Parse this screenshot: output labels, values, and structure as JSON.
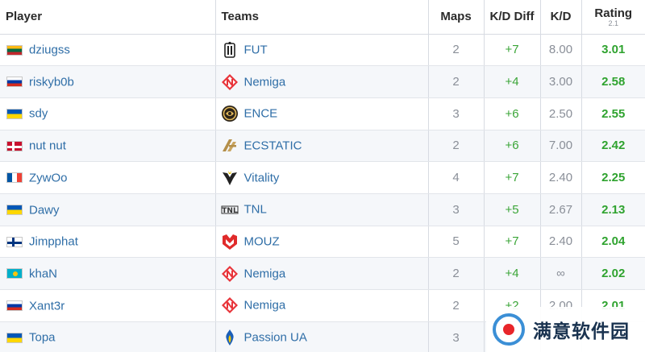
{
  "header": {
    "player": "Player",
    "teams": "Teams",
    "maps": "Maps",
    "kd_diff": "K/D Diff",
    "kd": "K/D",
    "rating": "Rating",
    "rating_version": "2.1"
  },
  "rows": [
    {
      "flag": "lt",
      "player": "dziugss",
      "team": "FUT",
      "team_logo": "fut-logo-icon",
      "maps": "2",
      "kd_diff": "+7",
      "kd": "8.00",
      "rating": "3.01"
    },
    {
      "flag": "ru",
      "player": "riskyb0b",
      "team": "Nemiga",
      "team_logo": "nemiga-logo-icon",
      "maps": "2",
      "kd_diff": "+4",
      "kd": "3.00",
      "rating": "2.58"
    },
    {
      "flag": "ua",
      "player": "sdy",
      "team": "ENCE",
      "team_logo": "ence-logo-icon",
      "maps": "3",
      "kd_diff": "+6",
      "kd": "2.50",
      "rating": "2.55"
    },
    {
      "flag": "dk",
      "player": "nut nut",
      "team": "ECSTATIC",
      "team_logo": "ecstatic-logo-icon",
      "maps": "2",
      "kd_diff": "+6",
      "kd": "7.00",
      "rating": "2.42"
    },
    {
      "flag": "fr",
      "player": "ZywOo",
      "team": "Vitality",
      "team_logo": "vitality-logo-icon",
      "maps": "4",
      "kd_diff": "+7",
      "kd": "2.40",
      "rating": "2.25"
    },
    {
      "flag": "ua",
      "player": "Dawy",
      "team": "TNL",
      "team_logo": "tnl-logo-icon",
      "maps": "3",
      "kd_diff": "+5",
      "kd": "2.67",
      "rating": "2.13"
    },
    {
      "flag": "fi",
      "player": "Jimpphat",
      "team": "MOUZ",
      "team_logo": "mouz-logo-icon",
      "maps": "5",
      "kd_diff": "+7",
      "kd": "2.40",
      "rating": "2.04"
    },
    {
      "flag": "kz",
      "player": "khaN",
      "team": "Nemiga",
      "team_logo": "nemiga-logo-icon",
      "maps": "2",
      "kd_diff": "+4",
      "kd": "∞",
      "rating": "2.02"
    },
    {
      "flag": "ru",
      "player": "Xant3r",
      "team": "Nemiga",
      "team_logo": "nemiga-logo-icon",
      "maps": "2",
      "kd_diff": "+2",
      "kd": "2.00",
      "rating": "2.01"
    },
    {
      "flag": "ua",
      "player": "Topa",
      "team": "Passion UA",
      "team_logo": "passion-ua-logo-icon",
      "maps": "3",
      "kd_diff": "",
      "kd": "",
      "rating": ""
    }
  ],
  "watermark": {
    "text": "满意软件园"
  }
}
